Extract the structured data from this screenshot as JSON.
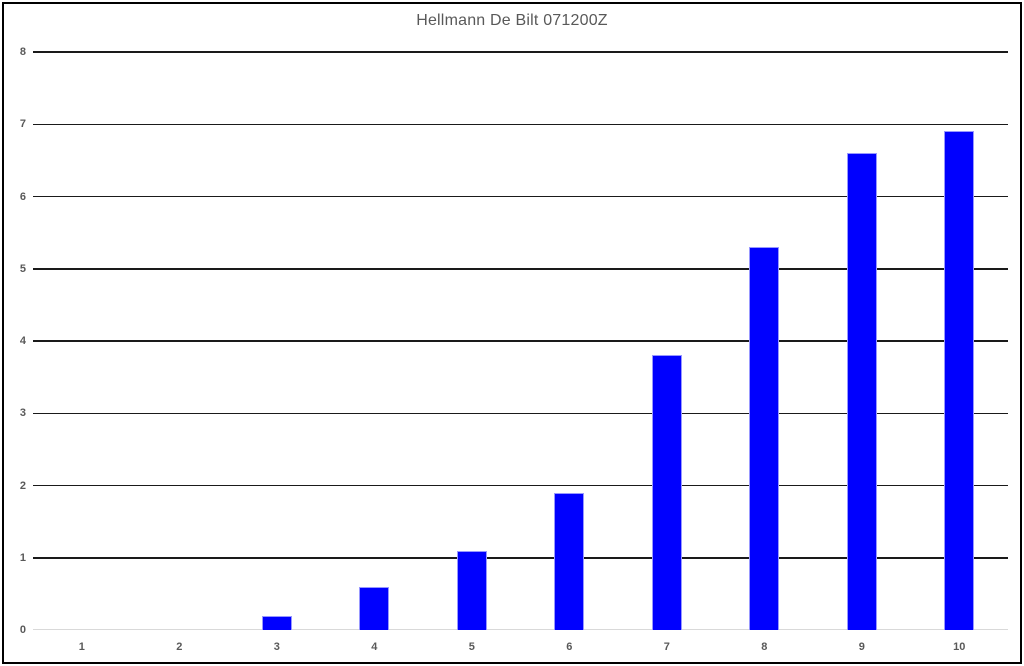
{
  "chart_data": {
    "type": "bar",
    "title": "Hellmann De Bilt 071200Z",
    "categories": [
      "1",
      "2",
      "3",
      "4",
      "5",
      "6",
      "7",
      "8",
      "9",
      "10"
    ],
    "values": [
      0,
      0,
      0.2,
      0.6,
      1.1,
      1.9,
      3.8,
      5.3,
      6.6,
      6.9
    ],
    "series_name": "Hellmann De Bilt 071200Z",
    "xlabel": "",
    "ylabel": "",
    "ylim": [
      0,
      8
    ],
    "ytick_step": 1,
    "yticks": [
      0,
      1,
      2,
      3,
      4,
      5,
      6,
      7,
      8
    ],
    "grid": true,
    "legend": false
  },
  "colors": {
    "bar_fill": "#0000fe",
    "bar_border": "#9898ff",
    "gridline": "#1a1a1a",
    "zero_line": "#d9d9d9",
    "axis_text": "#595959",
    "title_text": "#595959",
    "frame_border": "#000000",
    "background": "#ffffff"
  }
}
